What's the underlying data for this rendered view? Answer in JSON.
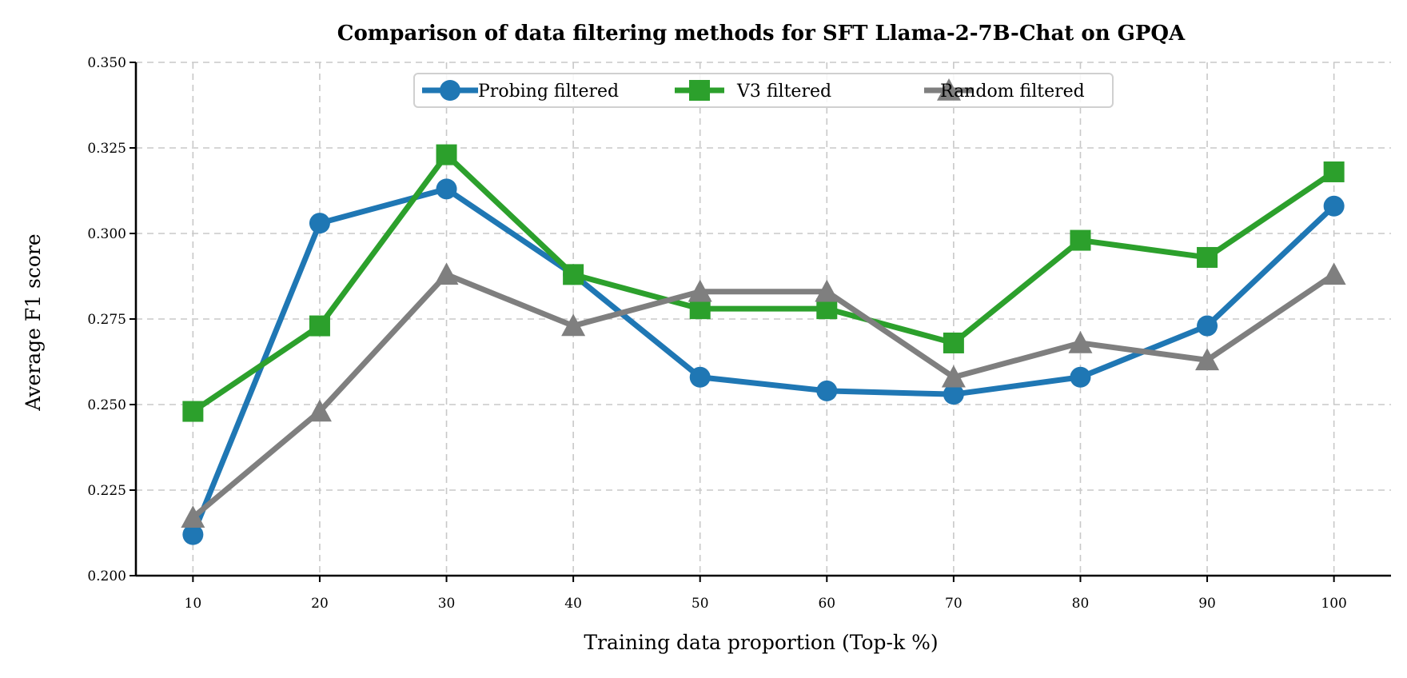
{
  "chart_data": {
    "type": "line",
    "title": "Comparison of data filtering methods for SFT Llama-2-7B-Chat on GPQA",
    "xlabel": "Training data proportion (Top-k %)",
    "ylabel": "Average F1 score",
    "x": [
      10,
      20,
      30,
      40,
      50,
      60,
      70,
      80,
      90,
      100
    ],
    "xlim": [
      5.5,
      104.5
    ],
    "ylim": [
      0.2,
      0.35
    ],
    "yticks": [
      0.2,
      0.225,
      0.25,
      0.275,
      0.3,
      0.325,
      0.35
    ],
    "ytick_labels": [
      "0.200",
      "0.225",
      "0.250",
      "0.275",
      "0.300",
      "0.325",
      "0.350"
    ],
    "xtick_labels": [
      "10",
      "20",
      "30",
      "40",
      "50",
      "60",
      "70",
      "80",
      "90",
      "100"
    ],
    "grid": true,
    "legend_position": "top-center",
    "series": [
      {
        "name": "Probing filtered",
        "color": "#1f77b4",
        "marker": "circle",
        "values": [
          0.212,
          0.303,
          0.313,
          0.288,
          0.258,
          0.254,
          0.253,
          0.258,
          0.273,
          0.308
        ]
      },
      {
        "name": "V3 filtered",
        "color": "#2ca02c",
        "marker": "square",
        "values": [
          0.248,
          0.273,
          0.323,
          0.288,
          0.278,
          0.278,
          0.268,
          0.298,
          0.293,
          0.318
        ]
      },
      {
        "name": "Random filtered",
        "color": "#7f7f7f",
        "marker": "triangle",
        "values": [
          0.217,
          0.248,
          0.288,
          0.273,
          0.283,
          0.283,
          0.258,
          0.268,
          0.263,
          0.288
        ]
      }
    ]
  }
}
